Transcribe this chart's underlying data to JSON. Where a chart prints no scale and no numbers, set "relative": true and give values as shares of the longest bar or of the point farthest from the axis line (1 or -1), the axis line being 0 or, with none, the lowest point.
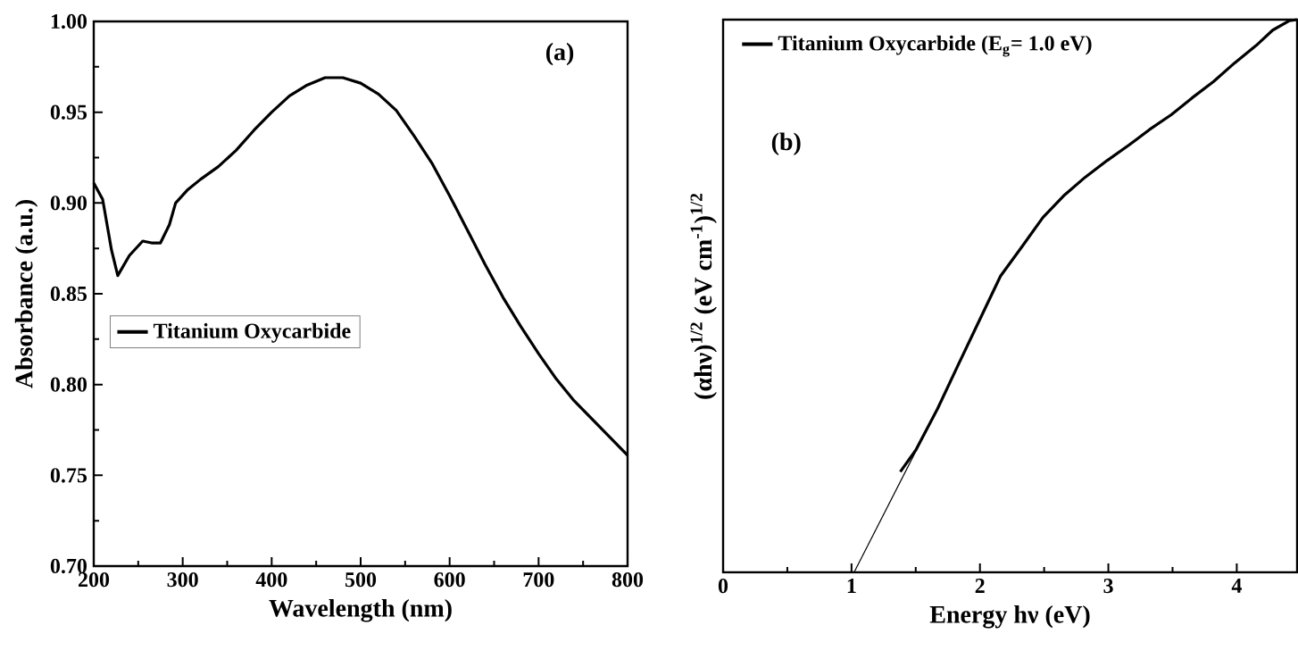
{
  "chart_data": [
    {
      "type": "line",
      "xlabel": "Wavelength (nm)",
      "ylabel": "Absorbance (a.u.)",
      "annotations": [
        "(a)"
      ],
      "xlim": [
        200,
        800
      ],
      "ylim": [
        0.7,
        1.0
      ],
      "xticks": [
        200,
        300,
        400,
        500,
        600,
        700,
        800
      ],
      "yticks": [
        {
          "value": 0.7,
          "label": "0.70"
        },
        0.75,
        {
          "value": 0.8,
          "label": "0.80"
        },
        0.85,
        {
          "value": 0.9,
          "label": "0.90"
        },
        0.95,
        {
          "value": 1.0,
          "label": "1.00"
        }
      ],
      "legend": "left",
      "grid": false,
      "series": [
        {
          "name": "Titanium Oxycarbide",
          "color": "#000000",
          "x": [
            200,
            210,
            220,
            227,
            240,
            255,
            265,
            275,
            285,
            292,
            305,
            320,
            340,
            360,
            380,
            400,
            420,
            440,
            460,
            480,
            500,
            520,
            540,
            560,
            580,
            600,
            620,
            640,
            660,
            680,
            700,
            720,
            740,
            760,
            780,
            800
          ],
          "values": [
            0.911,
            0.902,
            0.874,
            0.86,
            0.871,
            0.879,
            0.878,
            0.878,
            0.888,
            0.9,
            0.907,
            0.913,
            0.92,
            0.929,
            0.94,
            0.95,
            0.959,
            0.965,
            0.969,
            0.969,
            0.966,
            0.96,
            0.951,
            0.937,
            0.922,
            0.904,
            0.885,
            0.866,
            0.848,
            0.832,
            0.817,
            0.803,
            0.791,
            0.781,
            0.771,
            0.761
          ]
        }
      ]
    },
    {
      "type": "line",
      "xlabel": "Energy hν (eV)",
      "ylabel": "(αhν)$^{1/2}$ (eV cm$^{-1}$)$^{1/2}$",
      "annotations": [
        "(b)"
      ],
      "relative": true,
      "xlim": [
        0,
        4.47
      ],
      "xticks": [
        0,
        1,
        2,
        3,
        4
      ],
      "legend": "top left",
      "grid": false,
      "series": [
        {
          "name": "Titanium Oxycarbide (E$_{g}$= 1.0 eV)",
          "color": "#000000",
          "x": [
            1.38,
            1.5,
            1.67,
            1.83,
            2.0,
            2.16,
            2.33,
            2.49,
            2.66,
            2.82,
            2.99,
            3.16,
            3.32,
            3.49,
            3.65,
            3.82,
            3.98,
            4.15,
            4.28,
            4.41,
            4.47
          ],
          "values": [
            0.182,
            0.221,
            0.296,
            0.375,
            0.458,
            0.536,
            0.59,
            0.642,
            0.683,
            0.715,
            0.745,
            0.773,
            0.801,
            0.828,
            0.858,
            0.888,
            0.921,
            0.953,
            0.981,
            0.998,
            1.0
          ]
        },
        {
          "type": "line",
          "color": "#000000",
          "x": [
            1.02,
            1.67
          ],
          "values": [
            0,
            0.296
          ]
        }
      ]
    }
  ]
}
